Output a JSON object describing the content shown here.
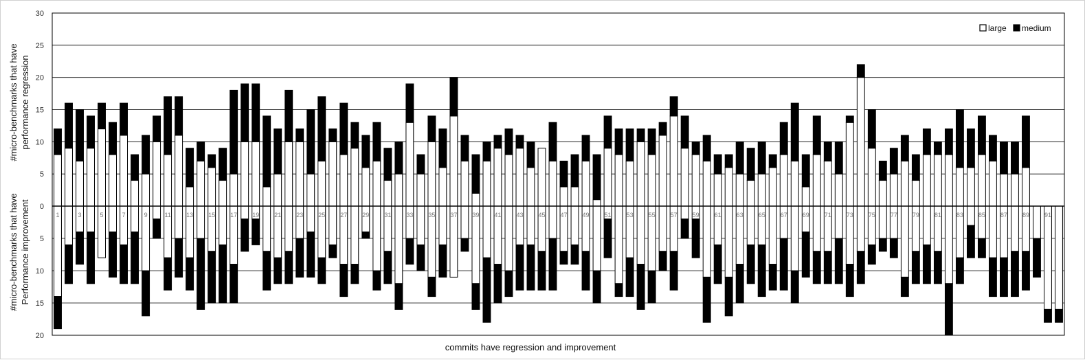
{
  "chart_data": {
    "type": "bar",
    "subtype": "stacked-diverging",
    "xlabel": "commits have regression and improvement",
    "ylabel_top": [
      "#micro-benchmarks that have",
      "performance regression"
    ],
    "ylabel_bottom": [
      "#micro-benchmarks that have",
      "Performance improvement"
    ],
    "ylim_top": [
      0,
      30
    ],
    "ylim_bottom": [
      0,
      20
    ],
    "yticks_top": [
      "0",
      "5",
      "10",
      "15",
      "20",
      "25",
      "30"
    ],
    "yticks_bottom": [
      "5",
      "10",
      "15",
      "20"
    ],
    "grid": true,
    "legend_position": "top-right",
    "x_tick_labels": [
      "1",
      "3",
      "5",
      "7",
      "9",
      "11",
      "13",
      "15",
      "17",
      "19",
      "21",
      "23",
      "25",
      "27",
      "29",
      "31",
      "33",
      "35",
      "37",
      "39",
      "41",
      "43",
      "45",
      "47",
      "49",
      "51",
      "53",
      "55",
      "57",
      "59",
      "61",
      "63",
      "65",
      "67",
      "69",
      "71",
      "73",
      "75",
      "77",
      "79",
      "81",
      "83",
      "85",
      "87",
      "89",
      "91"
    ],
    "x_tick_positions": [
      1,
      3,
      5,
      7,
      9,
      11,
      13,
      15,
      17,
      19,
      21,
      23,
      25,
      27,
      29,
      31,
      33,
      35,
      37,
      39,
      41,
      43,
      45,
      47,
      49,
      51,
      53,
      55,
      57,
      59,
      61,
      63,
      65,
      67,
      69,
      71,
      73,
      75,
      77,
      79,
      81,
      83,
      85,
      87,
      89,
      91
    ],
    "categories": [
      1,
      2,
      3,
      4,
      5,
      6,
      7,
      8,
      9,
      10,
      11,
      12,
      13,
      14,
      15,
      16,
      17,
      18,
      19,
      20,
      21,
      22,
      23,
      24,
      25,
      26,
      27,
      28,
      29,
      30,
      31,
      32,
      33,
      34,
      35,
      36,
      37,
      38,
      39,
      40,
      41,
      42,
      43,
      44,
      45,
      46,
      47,
      48,
      49,
      50,
      51,
      52,
      53,
      54,
      55,
      56,
      57,
      58,
      59,
      60,
      61,
      62,
      63,
      64,
      65,
      66,
      67,
      68,
      69,
      70,
      71,
      72,
      73,
      74,
      75,
      76,
      77,
      78,
      79,
      80,
      81,
      82,
      83,
      84,
      85,
      86,
      87,
      88,
      89,
      90,
      91,
      92
    ],
    "series": [
      {
        "name": "large",
        "color": "#ffffff",
        "regression": [
          8,
          9,
          7,
          9,
          12,
          8,
          11,
          4,
          5,
          10,
          8,
          11,
          3,
          7,
          6,
          4,
          5,
          10,
          10,
          3,
          5,
          10,
          10,
          5,
          7,
          10,
          8,
          9,
          6,
          7,
          4,
          5,
          13,
          5,
          10,
          6,
          14,
          7,
          2,
          7,
          9,
          8,
          9,
          6,
          9,
          7,
          3,
          3,
          7,
          1,
          9,
          8,
          7,
          10,
          8,
          11,
          14,
          9,
          8,
          7,
          5,
          6,
          5,
          4,
          5,
          6,
          8,
          7,
          3,
          8,
          7,
          5,
          13,
          20,
          9,
          4,
          5,
          7,
          4,
          8,
          8,
          8,
          6,
          6,
          8,
          7,
          5,
          5,
          6,
          0,
          0,
          0
        ],
        "improvement": [
          14,
          6,
          4,
          4,
          8,
          4,
          6,
          4,
          10,
          2,
          8,
          5,
          8,
          5,
          7,
          6,
          9,
          2,
          2,
          7,
          8,
          7,
          5,
          4,
          8,
          6,
          9,
          9,
          4,
          10,
          7,
          12,
          5,
          6,
          11,
          6,
          11,
          5,
          12,
          8,
          9,
          10,
          6,
          6,
          7,
          5,
          7,
          6,
          7,
          10,
          2,
          12,
          8,
          9,
          10,
          7,
          7,
          2,
          2,
          11,
          6,
          11,
          9,
          6,
          6,
          9,
          5,
          10,
          4,
          7,
          7,
          5,
          9,
          7,
          6,
          5,
          5,
          11,
          7,
          6,
          7,
          12,
          8,
          3,
          5,
          8,
          8,
          7,
          7,
          5,
          16,
          16
        ]
      },
      {
        "name": "medium",
        "color": "#000000",
        "regression": [
          4,
          7,
          8,
          5,
          4,
          5,
          5,
          4,
          6,
          4,
          9,
          6,
          6,
          3,
          2,
          5,
          13,
          9,
          9,
          11,
          7,
          8,
          2,
          10,
          10,
          2,
          8,
          4,
          5,
          6,
          5,
          5,
          6,
          3,
          4,
          6,
          6,
          4,
          6,
          3,
          2,
          4,
          2,
          4,
          0,
          6,
          4,
          5,
          4,
          7,
          5,
          4,
          5,
          2,
          4,
          2,
          3,
          5,
          2,
          4,
          3,
          2,
          5,
          5,
          5,
          2,
          5,
          9,
          5,
          6,
          3,
          5,
          1,
          2,
          6,
          3,
          4,
          4,
          4,
          4,
          2,
          4,
          9,
          6,
          6,
          4,
          5,
          5,
          8,
          0,
          0,
          0
        ],
        "improvement": [
          5,
          6,
          5,
          8,
          0,
          7,
          6,
          8,
          7,
          3,
          5,
          6,
          5,
          11,
          8,
          9,
          6,
          5,
          4,
          6,
          4,
          5,
          6,
          7,
          4,
          2,
          5,
          3,
          1,
          3,
          5,
          4,
          4,
          4,
          3,
          5,
          0,
          2,
          4,
          10,
          6,
          4,
          7,
          7,
          6,
          8,
          2,
          3,
          6,
          5,
          6,
          2,
          6,
          7,
          5,
          3,
          6,
          3,
          6,
          7,
          6,
          6,
          6,
          6,
          8,
          4,
          8,
          5,
          7,
          5,
          5,
          7,
          5,
          5,
          3,
          2,
          3,
          3,
          5,
          6,
          5,
          8,
          4,
          5,
          3,
          6,
          6,
          7,
          6,
          6,
          2,
          2
        ]
      }
    ]
  }
}
